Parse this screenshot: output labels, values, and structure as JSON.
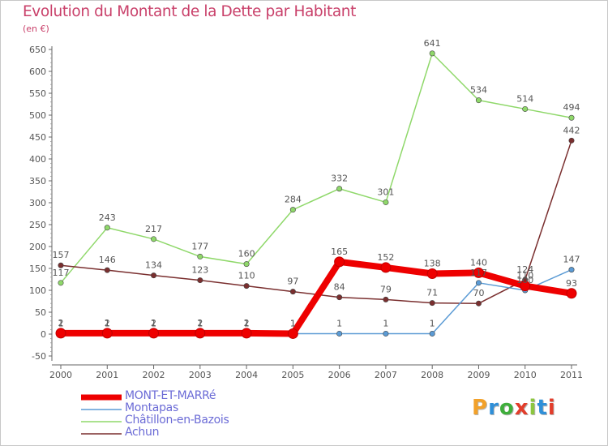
{
  "header": {
    "title": "Evolution du Montant de la Dette par Habitant",
    "subtitle": "(en €)"
  },
  "logo": {
    "text": "Proxiti",
    "colors": [
      "#f2a12a",
      "#2f8fd8",
      "#3fae3b",
      "#e23d2b",
      "#8cc63f",
      "#2f8fd8",
      "#e23d2b"
    ]
  },
  "colors": {
    "title": "#c9406a",
    "legend_text": "#6b6bd6",
    "axis": "#666666"
  },
  "chart_data": {
    "type": "line",
    "x": [
      "2000",
      "2001",
      "2002",
      "2003",
      "2004",
      "2005",
      "2006",
      "2007",
      "2008",
      "2009",
      "2010",
      "2011"
    ],
    "ylim": [
      -50,
      650
    ],
    "yticks": [
      -50,
      0,
      50,
      100,
      150,
      200,
      250,
      300,
      350,
      400,
      450,
      500,
      550,
      600,
      650
    ],
    "grid": false,
    "legend_position": "bottom-left",
    "series": [
      {
        "name": "MONT-ET-MARRé",
        "color": "#ee0000",
        "thick": true,
        "values": [
          2,
          2,
          2,
          2,
          2,
          1,
          165,
          152,
          138,
          140,
          110,
          93
        ],
        "labels": [
          "2",
          "2",
          "2",
          "2",
          "2",
          "1",
          "165",
          "152",
          "138",
          "140",
          "110",
          "93"
        ]
      },
      {
        "name": "Montapas",
        "color": "#5b9bd5",
        "thick": false,
        "values": [
          1,
          1,
          1,
          1,
          1,
          1,
          1,
          1,
          1,
          117,
          100,
          147
        ],
        "labels": [
          "1",
          "1",
          "1",
          "1",
          "1",
          "1",
          "1",
          "1",
          "1",
          "117",
          "100",
          "147"
        ]
      },
      {
        "name": "Châtillon-en-Bazois",
        "color": "#8fd86a",
        "thick": false,
        "values": [
          117,
          243,
          217,
          177,
          160,
          284,
          332,
          301,
          641,
          534,
          514,
          494
        ],
        "labels": [
          "117",
          "243",
          "217",
          "177",
          "160",
          "284",
          "332",
          "301",
          "641",
          "534",
          "514",
          "494"
        ]
      },
      {
        "name": "Achun",
        "color": "#7a2f2f",
        "thick": false,
        "values": [
          157,
          146,
          134,
          123,
          110,
          97,
          84,
          79,
          71,
          70,
          124,
          442
        ],
        "labels": [
          "157",
          "146",
          "134",
          "123",
          "110",
          "97",
          "84",
          "79",
          "71",
          "70",
          "124",
          "442"
        ]
      }
    ]
  }
}
